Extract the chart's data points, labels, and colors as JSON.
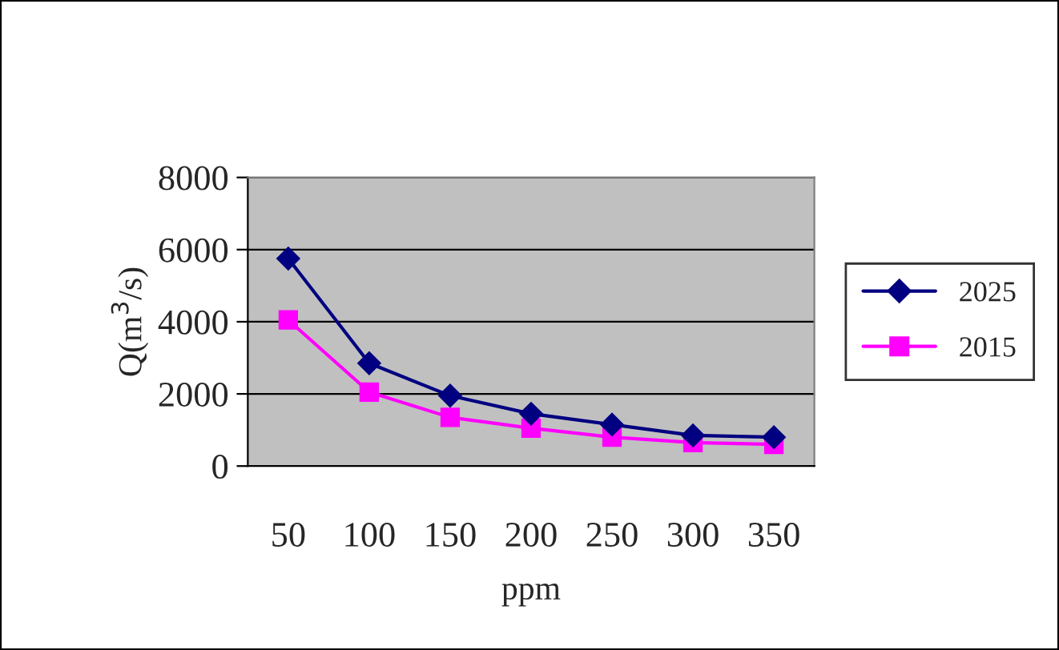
{
  "chart_data": {
    "type": "line",
    "xlabel": "ppm",
    "ylabel": "Q(m$^{3}$/s)",
    "categories": [
      "50",
      "100",
      "150",
      "200",
      "250",
      "300",
      "350"
    ],
    "series": [
      {
        "name": "2025",
        "color": "#000080",
        "marker": "diamond",
        "values": [
          5750,
          2850,
          1950,
          1450,
          1150,
          850,
          800
        ]
      },
      {
        "name": "2015",
        "color": "#ff00ff",
        "marker": "square",
        "values": [
          4050,
          2050,
          1350,
          1050,
          800,
          650,
          600
        ]
      }
    ],
    "ylim": [
      0,
      8000
    ],
    "yticks": [
      0,
      2000,
      4000,
      6000,
      8000
    ],
    "grid": "y",
    "legend": "right",
    "line_style": "solid"
  }
}
